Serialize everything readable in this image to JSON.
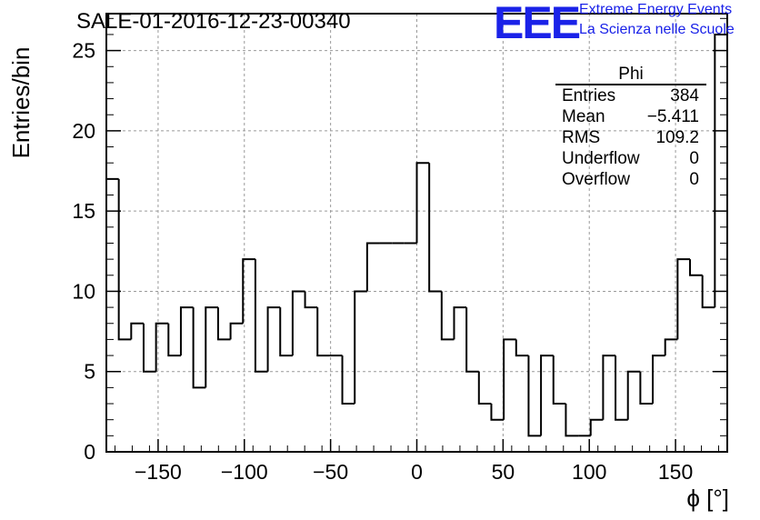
{
  "title": "SALE-01-2016-12-23-00340",
  "logo": {
    "mark": "EEE",
    "line1": "Extreme Energy Events",
    "line2": "La Scienza nelle Scuole",
    "color": "#1a22e8"
  },
  "stats": {
    "name": "Phi",
    "rows": [
      {
        "label": "Entries",
        "value": "384"
      },
      {
        "label": "Mean",
        "value": "−5.411"
      },
      {
        "label": "RMS",
        "value": "109.2"
      },
      {
        "label": "Underflow",
        "value": "0"
      },
      {
        "label": "Overflow",
        "value": "0"
      }
    ]
  },
  "chart_data": {
    "type": "histogram",
    "xlabel": "ϕ [°]",
    "ylabel": "Entries/bin",
    "xlim": [
      -180,
      180
    ],
    "ylim": [
      0,
      27.3
    ],
    "bin_width": 7.2,
    "xticks": [
      -150,
      -100,
      -50,
      0,
      50,
      100,
      150
    ],
    "xtick_labels": [
      "−150",
      "−100",
      "−50",
      "0",
      "50",
      "100",
      "150"
    ],
    "yticks": [
      0,
      5,
      10,
      15,
      20,
      25
    ],
    "grid": true,
    "values": [
      17,
      7,
      8,
      5,
      8,
      6,
      9,
      4,
      9,
      7,
      8,
      12,
      5,
      9,
      6,
      10,
      9,
      6,
      6,
      3,
      10,
      13,
      13,
      13,
      13,
      18,
      10,
      7,
      9,
      5,
      3,
      2,
      7,
      6,
      1,
      6,
      3,
      1,
      1,
      2,
      6,
      2,
      5,
      3,
      6,
      7,
      12,
      11,
      9,
      26
    ]
  }
}
